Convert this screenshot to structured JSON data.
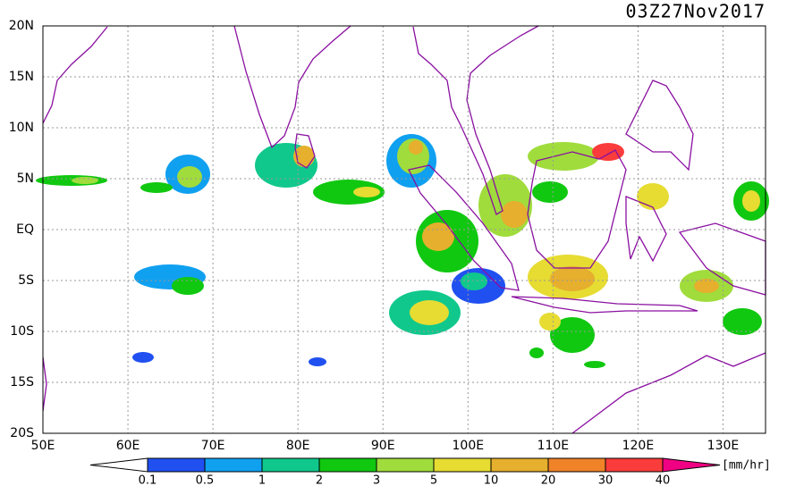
{
  "map": {
    "title": "03Z27Nov2017",
    "lon_ticks": [
      {
        "value": 50,
        "label": "50E"
      },
      {
        "value": 60,
        "label": "60E"
      },
      {
        "value": 70,
        "label": "70E"
      },
      {
        "value": 80,
        "label": "80E"
      },
      {
        "value": 90,
        "label": "90E"
      },
      {
        "value": 100,
        "label": "100E"
      },
      {
        "value": 110,
        "label": "110E"
      },
      {
        "value": 120,
        "label": "120E"
      },
      {
        "value": 130,
        "label": "130E"
      }
    ],
    "lat_ticks": [
      {
        "value": 20,
        "label": "20N"
      },
      {
        "value": 15,
        "label": "15N"
      },
      {
        "value": 10,
        "label": "10N"
      },
      {
        "value": 5,
        "label": "5N"
      },
      {
        "value": 0,
        "label": "EQ"
      },
      {
        "value": -5,
        "label": "5S"
      },
      {
        "value": -10,
        "label": "10S"
      },
      {
        "value": -15,
        "label": "15S"
      },
      {
        "value": -20,
        "label": "20S"
      }
    ],
    "lonlim": [
      50,
      135
    ],
    "latlim": [
      -20,
      20
    ],
    "colorbar": {
      "labels": [
        0.1,
        0.5,
        1,
        2,
        3,
        5,
        10,
        20,
        30,
        40
      ],
      "colors": [
        "#ffffff",
        "#2050f0",
        "#10a0f0",
        "#10c88c",
        "#10c810",
        "#a0dc3c",
        "#e6dc32",
        "#e6af2d",
        "#f08228",
        "#fa3c3c",
        "#f00082"
      ],
      "unit": "[mm/hr]"
    }
  }
}
